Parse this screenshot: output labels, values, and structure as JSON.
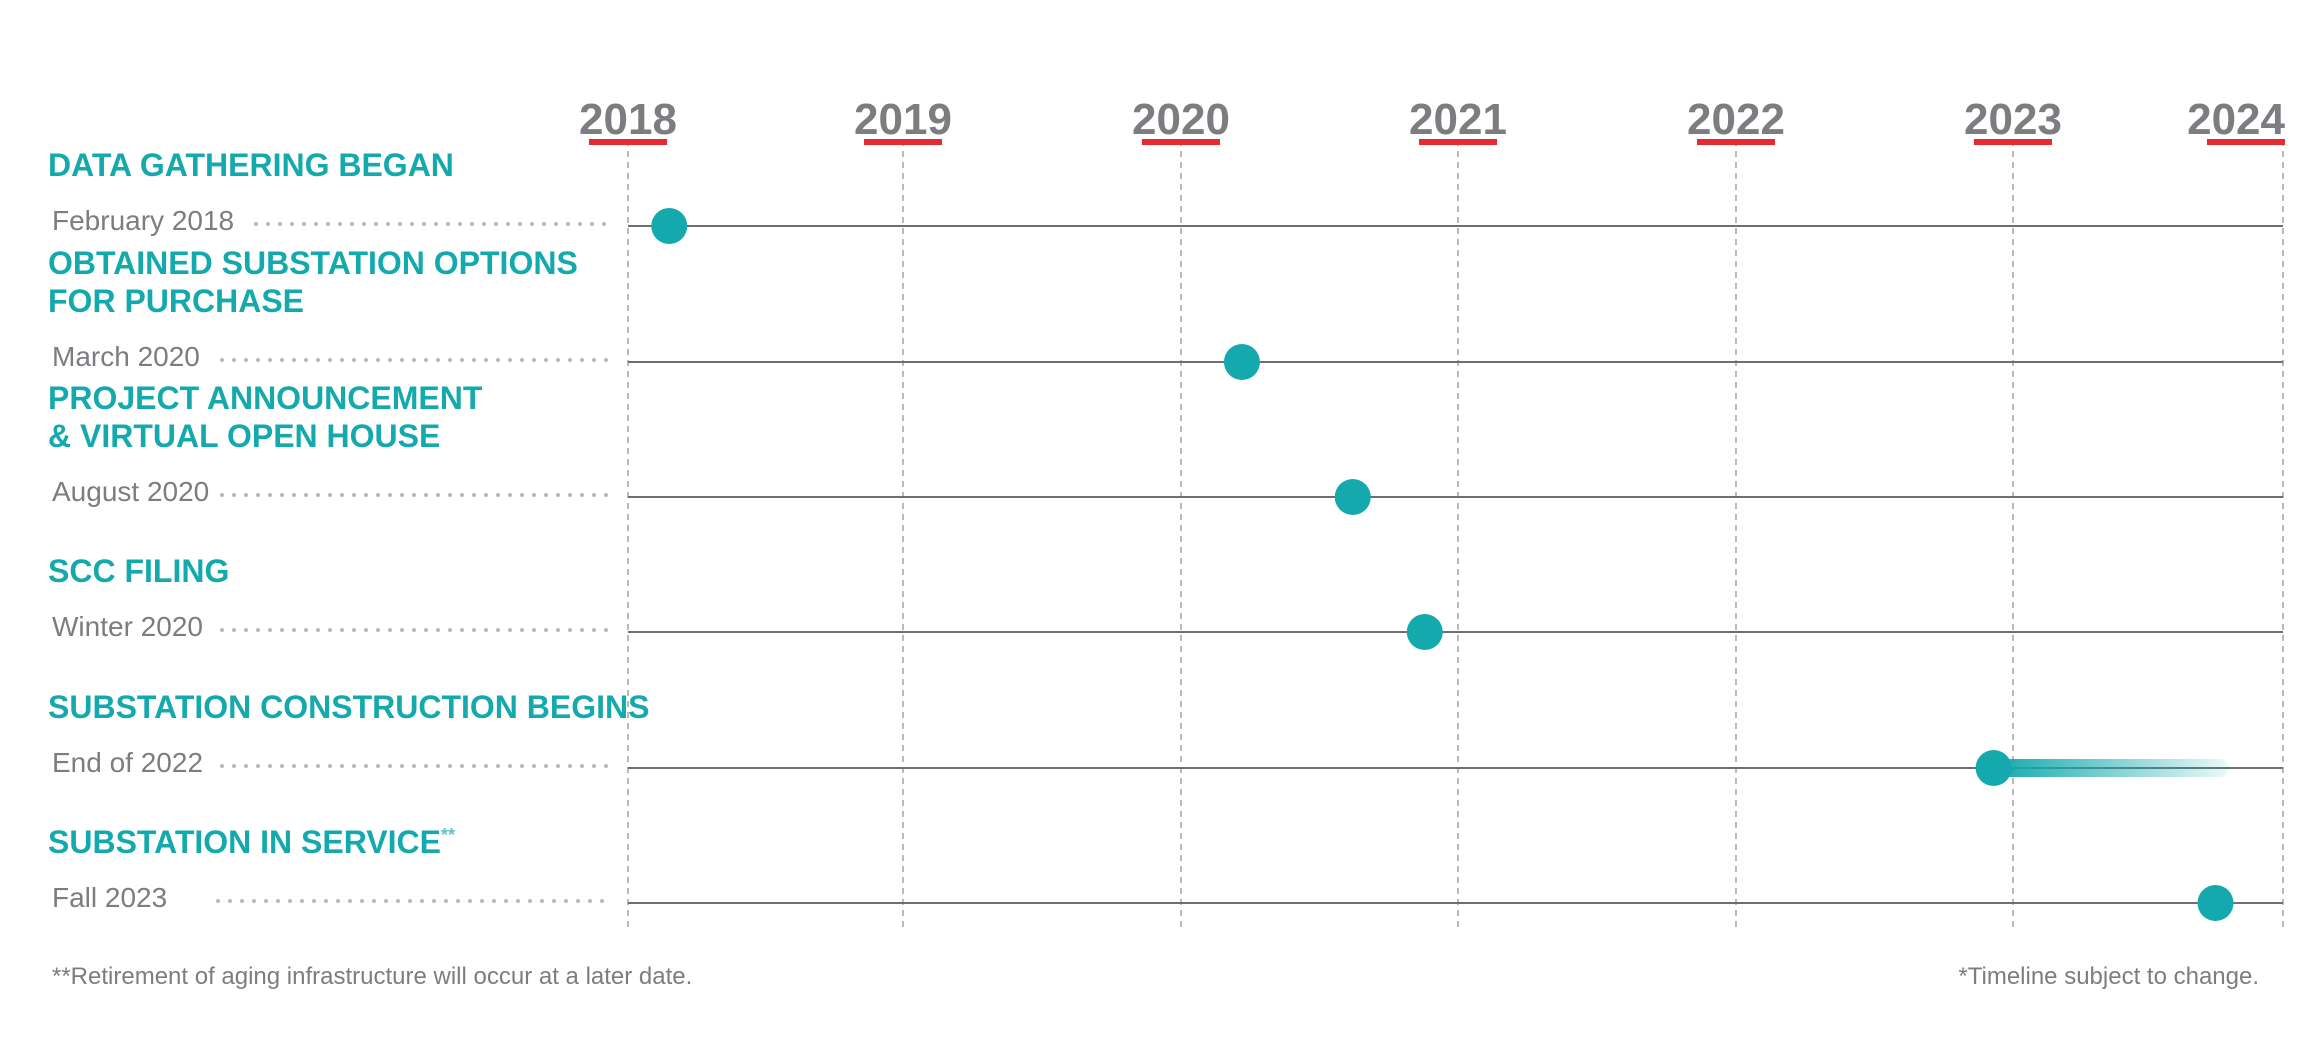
{
  "chart_data": {
    "type": "scatter",
    "x_axis": {
      "ticks": [
        "2018",
        "2019",
        "2020",
        "2021",
        "2022",
        "2023",
        "2024"
      ],
      "range": [
        2018,
        2024
      ],
      "grid": true
    },
    "milestones": [
      {
        "title_lines": [
          "DATA GATHERING BEGAN"
        ],
        "title_sup": "",
        "date_label": "February 2018",
        "x": 2018.15,
        "end_x": null
      },
      {
        "title_lines": [
          "OBTAINED SUBSTATION OPTIONS",
          "FOR PURCHASE"
        ],
        "title_sup": "",
        "date_label": "March 2020",
        "x": 2020.22,
        "end_x": null
      },
      {
        "title_lines": [
          "PROJECT ANNOUNCEMENT",
          "& VIRTUAL OPEN HOUSE"
        ],
        "title_sup": "",
        "date_label": "August 2020",
        "x": 2020.62,
        "end_x": null
      },
      {
        "title_lines": [
          "SCC FILING"
        ],
        "title_sup": "",
        "date_label": "Winter 2020",
        "x": 2020.88,
        "end_x": null
      },
      {
        "title_lines": [
          "SUBSTATION CONSTRUCTION BEGINS"
        ],
        "title_sup": "",
        "date_label": "End of 2022",
        "x": 2022.93,
        "end_x": 2023.8
      },
      {
        "title_lines": [
          "SUBSTATION IN SERVICE"
        ],
        "title_sup": "**",
        "date_label": "Fall 2023",
        "x": 2023.75,
        "end_x": null
      }
    ],
    "footnote_left": "**Retirement of aging infrastructure will occur at a later date.",
    "footnote_right": "*Timeline subject to change."
  },
  "colors": {
    "teal": "#14a9ad",
    "year_text": "#7b7d80",
    "year_underline": "#e52a34",
    "row_line": "#6d6f72",
    "grid_line": "#a6a8ab",
    "dots": "#b6b8bb"
  }
}
